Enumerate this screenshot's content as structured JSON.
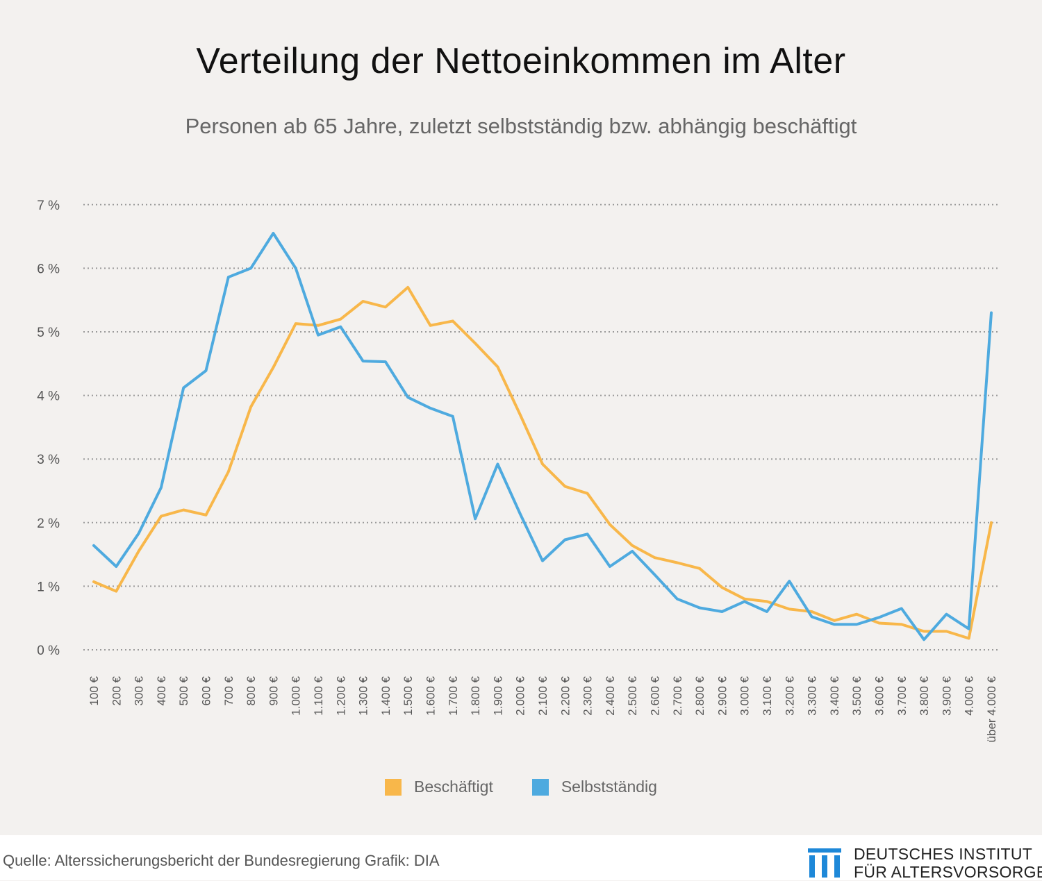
{
  "header": {
    "title": "Verteilung der Nettoeinkommen im Alter",
    "subtitle": "Personen ab 65 Jahre, zuletzt selbstständig bzw. abhängig beschäftigt"
  },
  "footer": {
    "source": "Quelle: Alterssicherungsbericht der Bundesregierung  Grafik: DIA",
    "logo_line1": "DEUTSCHES INSTITUT",
    "logo_line2": "FÜR ALTERSVORSORGE"
  },
  "chart_data": {
    "type": "line",
    "title": "Verteilung der Nettoeinkommen im Alter",
    "subtitle": "Personen ab 65 Jahre, zuletzt selbstständig bzw. abhängig beschäftigt",
    "xlabel": "",
    "ylabel": "",
    "ylim": [
      0,
      7
    ],
    "y_ticks": [
      0,
      1,
      2,
      3,
      4,
      5,
      6,
      7
    ],
    "y_tick_labels": [
      "0 %",
      "1 %",
      "2 %",
      "3 %",
      "4 %",
      "5 %",
      "6 %",
      "7 %"
    ],
    "grid": true,
    "legend_position": "bottom-center",
    "categories": [
      "100 €",
      "200 €",
      "300 €",
      "400 €",
      "500 €",
      "600 €",
      "700 €",
      "800 €",
      "900 €",
      "1.000 €",
      "1.100 €",
      "1.200 €",
      "1.300 €",
      "1.400 €",
      "1.500 €",
      "1.600 €",
      "1.700 €",
      "1.800 €",
      "1.900 €",
      "2.000 €",
      "2.100 €",
      "2.200 €",
      "2.300 €",
      "2.400 €",
      "2.500 €",
      "2.600 €",
      "2.700 €",
      "2.800 €",
      "2.900 €",
      "3.000 €",
      "3.100 €",
      "3.200 €",
      "3.300 €",
      "3.400 €",
      "3.500 €",
      "3.600 €",
      "3.700 €",
      "3.800 €",
      "3.900 €",
      "4.000 €",
      "über 4.000 €"
    ],
    "series": [
      {
        "name": "Beschäftigt",
        "color": "#f8b74a",
        "values": [
          1.07,
          0.92,
          1.55,
          2.1,
          2.2,
          2.12,
          2.8,
          3.82,
          4.44,
          5.13,
          5.1,
          5.2,
          5.48,
          5.39,
          5.7,
          5.1,
          5.17,
          4.82,
          4.45,
          3.7,
          2.92,
          2.57,
          2.46,
          1.97,
          1.64,
          1.45,
          1.37,
          1.28,
          0.98,
          0.8,
          0.76,
          0.64,
          0.6,
          0.46,
          0.56,
          0.42,
          0.4,
          0.29,
          0.29,
          0.18,
          2.0
        ]
      },
      {
        "name": "Selbstständig",
        "color": "#4eaadf",
        "values": [
          1.64,
          1.31,
          1.83,
          2.55,
          4.12,
          4.39,
          5.86,
          6.0,
          6.55,
          6.0,
          4.95,
          5.08,
          4.54,
          4.53,
          3.97,
          3.8,
          3.67,
          2.06,
          2.92,
          2.14,
          1.4,
          1.73,
          1.82,
          1.31,
          1.55,
          1.18,
          0.8,
          0.66,
          0.6,
          0.76,
          0.6,
          1.08,
          0.52,
          0.4,
          0.4,
          0.51,
          0.65,
          0.16,
          0.56,
          0.33,
          5.3
        ]
      }
    ]
  }
}
